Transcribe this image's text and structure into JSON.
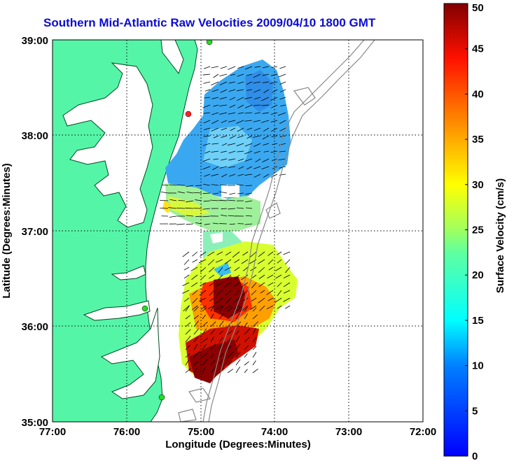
{
  "title": "Southern Mid-Atlantic Raw Velocities 2009/04/10 1800 GMT",
  "x_axis": {
    "label": "Longitude (Degrees:Minutes)",
    "ticks": [
      "77:00",
      "76:00",
      "75:00",
      "74:00",
      "73:00",
      "72:00"
    ]
  },
  "y_axis": {
    "label": "Latitude (Degrees:Minutes)",
    "ticks": [
      "39:00",
      "38:00",
      "37:00",
      "36:00",
      "35:00"
    ]
  },
  "colorbar": {
    "label": "Surface Velocity (cm/s)",
    "ticks": [
      "50",
      "45",
      "40",
      "35",
      "30",
      "25",
      "20",
      "15",
      "10",
      "5",
      "0"
    ],
    "min": 0,
    "max": 50,
    "colormap": "jet"
  },
  "colors": {
    "land": "#55f5a8",
    "title": "#0b0bd6",
    "grid": "#000000",
    "station_red": "#ff2020",
    "station_green": "#22dd22"
  },
  "grid": "dotted",
  "stations": [
    {
      "color": "green"
    },
    {
      "color": "red"
    },
    {
      "color": "green"
    },
    {
      "color": "green"
    }
  ]
}
